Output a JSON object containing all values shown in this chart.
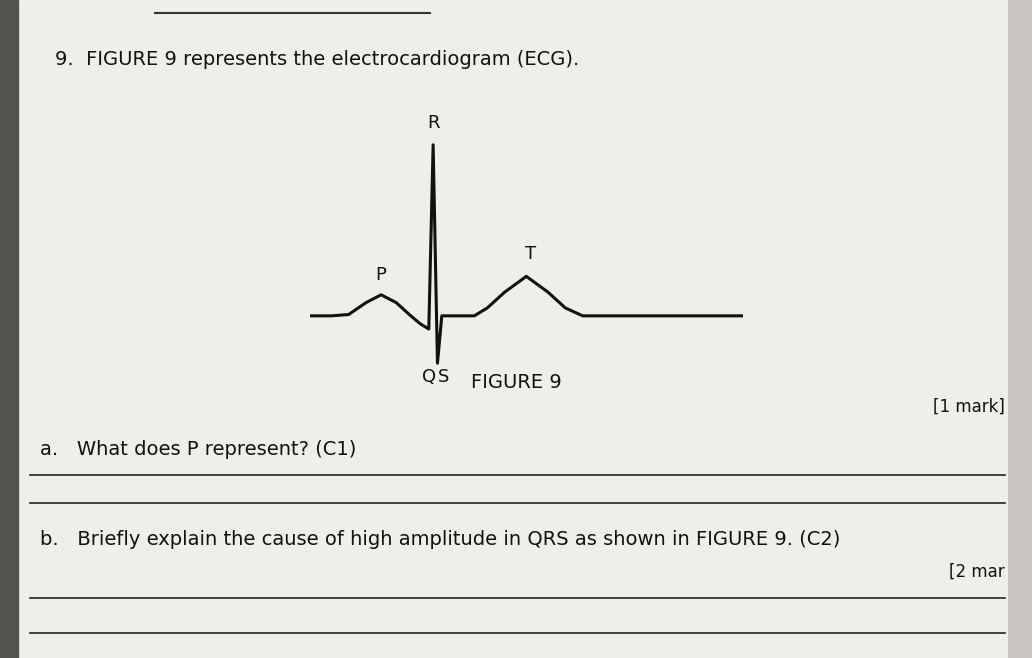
{
  "background_color": "#c8c5c0",
  "page_color": "#f0eeeb",
  "title_text": "9.  FIGURE 9 represents the electrocardiogram (ECG).",
  "figure_label": "FIGURE 9",
  "ecg_color": "#111111",
  "ecg_linewidth": 2.2,
  "question_a": "a.   What does P represent? (C1)",
  "question_b": "b.   Briefly explain the cause of high amplitude in QRS as shown in FIGURE 9. (C2)",
  "mark_a": "[1 mark]",
  "mark_b": "[2 mar",
  "label_P": "P",
  "label_Q": "Q",
  "label_R": "R",
  "label_S": "S",
  "label_T": "T",
  "text_fontsize": 14,
  "label_fontsize": 13,
  "ecg_x": [
    0.0,
    0.5,
    0.9,
    1.3,
    1.65,
    2.0,
    2.3,
    2.55,
    2.75,
    2.85,
    2.95,
    3.05,
    3.2,
    3.35,
    3.5,
    3.65,
    3.8,
    4.1,
    4.5,
    5.0,
    5.5,
    5.9,
    6.3,
    6.7,
    7.0,
    7.5,
    10.0
  ],
  "ecg_y": [
    0.0,
    0.0,
    0.05,
    0.5,
    0.8,
    0.5,
    0.05,
    -0.3,
    -0.5,
    6.5,
    -1.8,
    0.0,
    0.0,
    0.0,
    0.0,
    0.0,
    0.0,
    0.3,
    0.9,
    1.5,
    0.9,
    0.3,
    0.0,
    0.0,
    0.0,
    0.0,
    0.0
  ]
}
